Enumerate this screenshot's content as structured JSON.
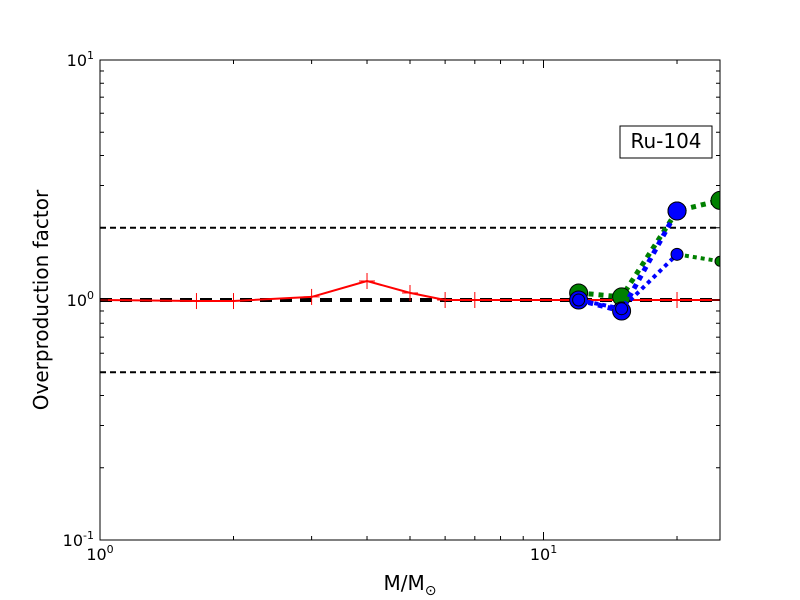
{
  "chart_data": {
    "type": "line",
    "xlabel": "M/M",
    "xlabel_subscript": "⊙",
    "ylabel": "Overproduction factor",
    "x_scale": "log",
    "y_scale": "log",
    "xlim": [
      1,
      25
    ],
    "ylim": [
      0.1,
      10
    ],
    "x_ticks": [
      {
        "value": 1,
        "base": "10",
        "exp": "0"
      },
      {
        "value": 10,
        "base": "10",
        "exp": "1"
      }
    ],
    "y_ticks": [
      {
        "value": 0.1,
        "base": "10",
        "exp": "-1"
      },
      {
        "value": 1,
        "base": "10",
        "exp": "0"
      },
      {
        "value": 10,
        "base": "10",
        "exp": "1"
      }
    ],
    "annotation": "Ru-104",
    "reference_lines": [
      {
        "y": 2.0,
        "color": "#000000",
        "style": "dashed",
        "width": 2
      },
      {
        "y": 1.0,
        "color": "#000000",
        "style": "dashed",
        "width": 4
      },
      {
        "y": 0.5,
        "color": "#000000",
        "style": "dashed",
        "width": 2
      }
    ],
    "series": [
      {
        "color": "#ff0000",
        "style": "solid",
        "width": 2,
        "marker": "plus",
        "marker_size": 16,
        "x": [
          1.0,
          1.65,
          2.0,
          3.0,
          4.0,
          5.0,
          6.0,
          7.0,
          12.0,
          15.0,
          20.0,
          25.0
        ],
        "y": [
          1.0,
          0.99,
          0.99,
          1.03,
          1.2,
          1.07,
          1.0,
          1.0,
          1.0,
          1.0,
          1.0,
          1.0
        ]
      },
      {
        "color": "#008000",
        "style": "dotted",
        "width": 5,
        "marker": "circle",
        "marker_size": 18,
        "x": [
          12.0,
          15.0,
          20.0,
          25.0
        ],
        "y": [
          1.07,
          1.03,
          2.35,
          2.6
        ]
      },
      {
        "color": "#008000",
        "style": "dotted",
        "width": 4,
        "marker": "circle",
        "marker_size": 10,
        "x": [
          20.0,
          25.0
        ],
        "y": [
          1.55,
          1.45
        ]
      },
      {
        "color": "#0000ff",
        "style": "dotted",
        "width": 5,
        "marker": "circle",
        "marker_size": 18,
        "x": [
          12.0,
          15.0,
          20.0
        ],
        "y": [
          1.0,
          0.9,
          2.35
        ]
      },
      {
        "color": "#0000ff",
        "style": "dotted",
        "width": 4,
        "marker": "circle",
        "marker_size": 12,
        "x": [
          12.0,
          15.0,
          20.0
        ],
        "y": [
          1.0,
          0.92,
          1.55
        ]
      }
    ]
  }
}
